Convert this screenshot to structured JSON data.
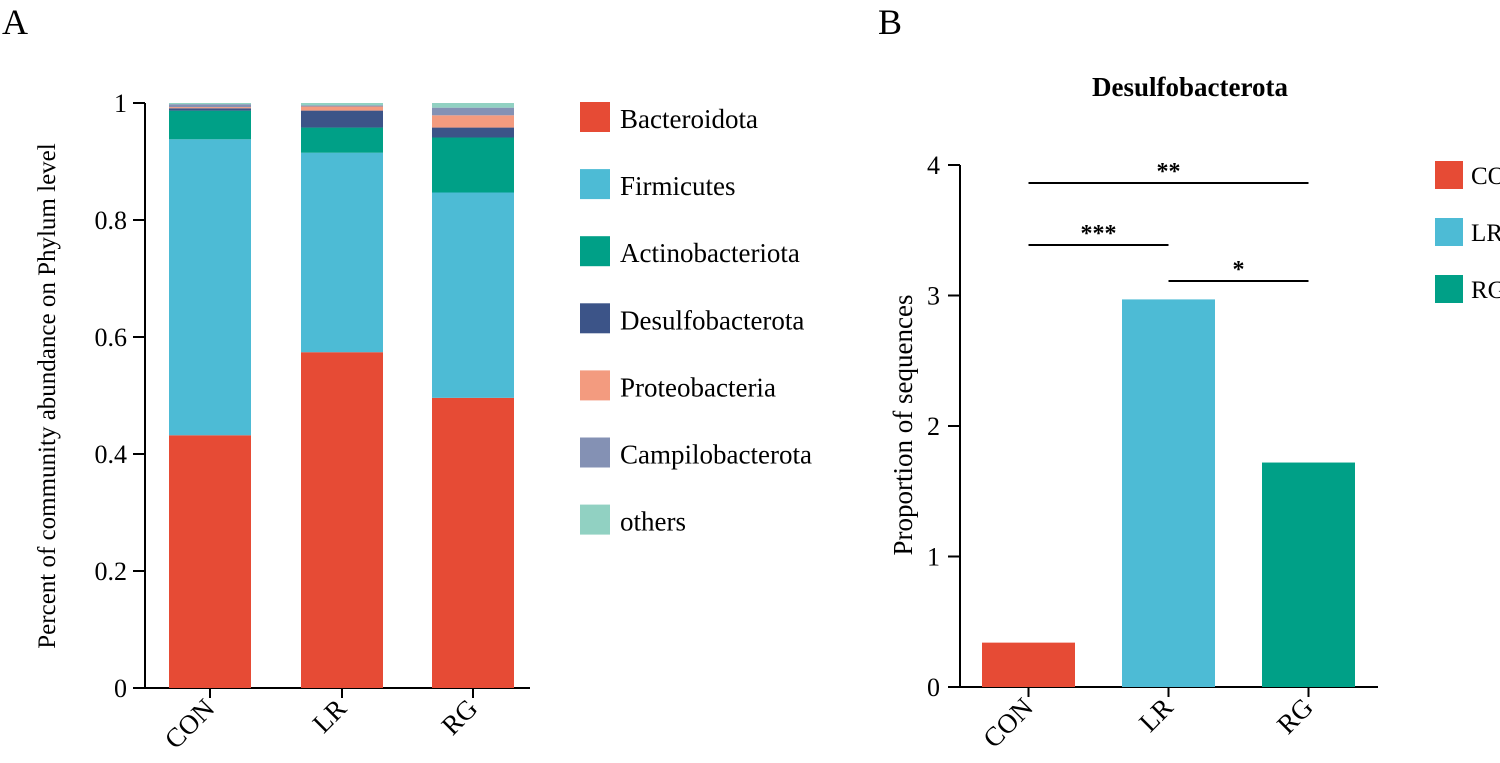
{
  "chart_data": [
    {
      "panel_label": "A",
      "type": "bar",
      "stacked": true,
      "title": "",
      "xlabel": "",
      "ylabel": "Percent of community abundance on Phylum level",
      "ylim": [
        0,
        1
      ],
      "yticks": [
        "0",
        "0.2",
        "0.4",
        "0.6",
        "0.8",
        "1"
      ],
      "categories": [
        "CON",
        "LR",
        "RG"
      ],
      "legend_position": "right",
      "series": [
        {
          "name": "Bacteroidota",
          "color": "#E64B35",
          "values": [
            0.432,
            0.574,
            0.496
          ]
        },
        {
          "name": "Firmicutes",
          "color": "#4DBBD5",
          "values": [
            0.506,
            0.341,
            0.351
          ]
        },
        {
          "name": "Actinobacteriota",
          "color": "#00A087",
          "values": [
            0.049,
            0.043,
            0.094
          ]
        },
        {
          "name": "Desulfobacterota",
          "color": "#3C5488",
          "values": [
            0.004,
            0.029,
            0.017
          ]
        },
        {
          "name": "Proteobacteria",
          "color": "#F39B7F",
          "values": [
            0.002,
            0.007,
            0.021
          ]
        },
        {
          "name": "Campilobacterota",
          "color": "#8491B4",
          "values": [
            0.005,
            0.002,
            0.013
          ]
        },
        {
          "name": "others",
          "color": "#91D1C2",
          "values": [
            0.002,
            0.004,
            0.008
          ]
        }
      ]
    },
    {
      "panel_label": "B",
      "type": "bar",
      "title": "Desulfobacterota",
      "xlabel": "",
      "ylabel": "Proportion of sequences",
      "ylim": [
        0,
        4
      ],
      "yticks": [
        "0",
        "1",
        "2",
        "3",
        "4"
      ],
      "categories": [
        "CON",
        "LR",
        "RG"
      ],
      "values": [
        0.34,
        2.97,
        1.72
      ],
      "colors": [
        "#E64B35",
        "#4DBBD5",
        "#00A087"
      ],
      "legend_position": "right",
      "legend": [
        "CON",
        "LR",
        "RG"
      ],
      "significance": [
        {
          "from": "CON",
          "to": "RG",
          "label": "**"
        },
        {
          "from": "CON",
          "to": "LR",
          "label": "***"
        },
        {
          "from": "LR",
          "to": "RG",
          "label": "*"
        }
      ]
    }
  ]
}
